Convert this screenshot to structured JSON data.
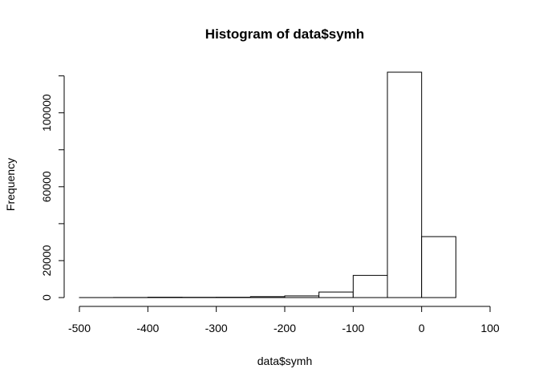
{
  "chart_data": {
    "type": "bar",
    "title": "Histogram of data$symh",
    "xlabel": "data$symh",
    "ylabel": "Frequency",
    "bin_edges": [
      -500,
      -450,
      -400,
      -350,
      -300,
      -250,
      -200,
      -150,
      -100,
      -50,
      0,
      50
    ],
    "values": [
      10,
      60,
      200,
      150,
      180,
      500,
      900,
      3000,
      12000,
      122000,
      33000
    ],
    "xlim": [
      -500,
      100
    ],
    "ylim": [
      0,
      122000
    ],
    "xticks": [
      -500,
      -400,
      -300,
      -200,
      -100,
      0,
      100
    ],
    "yticks": [
      0,
      20000,
      60000,
      100000
    ],
    "yticks_minor": [
      40000,
      80000,
      120000
    ],
    "grid": false,
    "colors": {
      "bar_fill": "#ffffff",
      "bar_stroke": "#000000"
    }
  }
}
